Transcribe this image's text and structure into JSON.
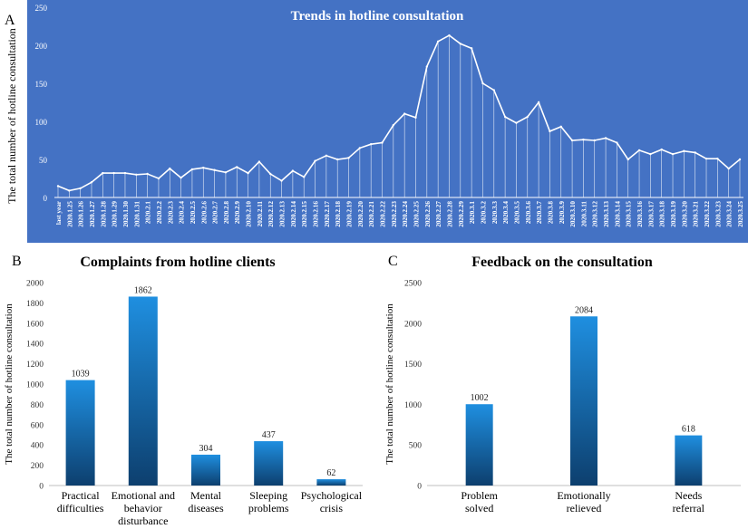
{
  "panel_letters": {
    "a": "A",
    "b": "B",
    "c": "C"
  },
  "colors": {
    "panel_a_bg": "#4472c4",
    "panel_a_line": "#ffffff",
    "bar_top": "#1f8fe0",
    "bar_bottom": "#0d3f6e",
    "axis_text": "#333333",
    "grid": "#d9d9d9"
  },
  "chart_data": [
    {
      "id": "A",
      "type": "line",
      "title": "Trends in hotline consultation",
      "xlabel": "",
      "ylabel": "The total number of hotline consultation",
      "ylim": [
        0,
        250
      ],
      "yticks": [
        0,
        50,
        100,
        150,
        200,
        250
      ],
      "x": [
        "last year",
        "2020.1.25",
        "2020.1.26",
        "2020.1.27",
        "2020.1.28",
        "2020.1.29",
        "2020.1.30",
        "2020.1.31",
        "2020.2.1",
        "2020.2.2",
        "2020.2.3",
        "2020.2.4",
        "2020.2.5",
        "2020.2.6",
        "2020.2.7",
        "2020.2.8",
        "2020.2.9",
        "2020.2.10",
        "2020.2.11",
        "2020.2.12",
        "2020.2.13",
        "2020.2.14",
        "2020.2.15",
        "2020.2.16",
        "2020.2.17",
        "2020.2.18",
        "2020.2.19",
        "2020.2.20",
        "2020.2.21",
        "2020.2.22",
        "2020.2.23",
        "2020.2.24",
        "2020.2.25",
        "2020.2.26",
        "2020.2.27",
        "2020.2.28",
        "2020.2.29",
        "2020.3.1",
        "2020.3.2",
        "2020.3.3",
        "2020.3.4",
        "2020.3.5",
        "2020.3.6",
        "2020.3.7",
        "2020.3.8",
        "2020.3.9",
        "2020.3.10",
        "2020.3.11",
        "2020.3.12",
        "2020.3.13",
        "2020.3.14",
        "2020.3.15",
        "2020.3.16",
        "2020.3.17",
        "2020.3.18",
        "2020.3.19",
        "2020.3.20",
        "2020.3.21",
        "2020.3.22",
        "2020.3.23",
        "2020.3.24",
        "2020.3.25"
      ],
      "values": [
        15,
        9,
        12,
        20,
        32,
        32,
        32,
        30,
        31,
        25,
        38,
        26,
        37,
        39,
        36,
        33,
        40,
        32,
        47,
        31,
        22,
        35,
        27,
        48,
        55,
        50,
        52,
        65,
        70,
        72,
        95,
        110,
        105,
        172,
        205,
        213,
        202,
        196,
        150,
        141,
        106,
        98,
        106,
        125,
        87,
        93,
        75,
        76,
        75,
        78,
        72,
        50,
        62,
        57,
        63,
        57,
        61,
        59,
        51,
        51,
        38,
        50
      ],
      "grid": false,
      "legend": "none"
    },
    {
      "id": "B",
      "type": "bar",
      "title": "Complaints from hotline clients",
      "xlabel": "",
      "ylabel": "The total number of hotline consultation",
      "ylim": [
        0,
        2000
      ],
      "yticks": [
        0,
        200,
        400,
        600,
        800,
        1000,
        1200,
        1400,
        1600,
        1800,
        2000
      ],
      "categories": [
        [
          "Practical",
          "difficulties"
        ],
        [
          "Emotional and",
          "behavior",
          "disturbance"
        ],
        [
          "Mental",
          "diseases"
        ],
        [
          "Sleeping",
          "problems"
        ],
        [
          "Psychological",
          "crisis"
        ]
      ],
      "values": [
        1039,
        1862,
        304,
        437,
        62
      ],
      "grid": false,
      "legend": "none"
    },
    {
      "id": "C",
      "type": "bar",
      "title": "Feedback on the consultation",
      "xlabel": "",
      "ylabel": "The total number of hotline consultation",
      "ylim": [
        0,
        2500
      ],
      "yticks": [
        0,
        500,
        1000,
        1500,
        2000,
        2500
      ],
      "categories": [
        [
          "Problem",
          "solved"
        ],
        [
          "Emotionally",
          "relieved"
        ],
        [
          "Needs",
          "referral"
        ]
      ],
      "values": [
        1002,
        2084,
        618
      ],
      "grid": false,
      "legend": "none"
    }
  ]
}
